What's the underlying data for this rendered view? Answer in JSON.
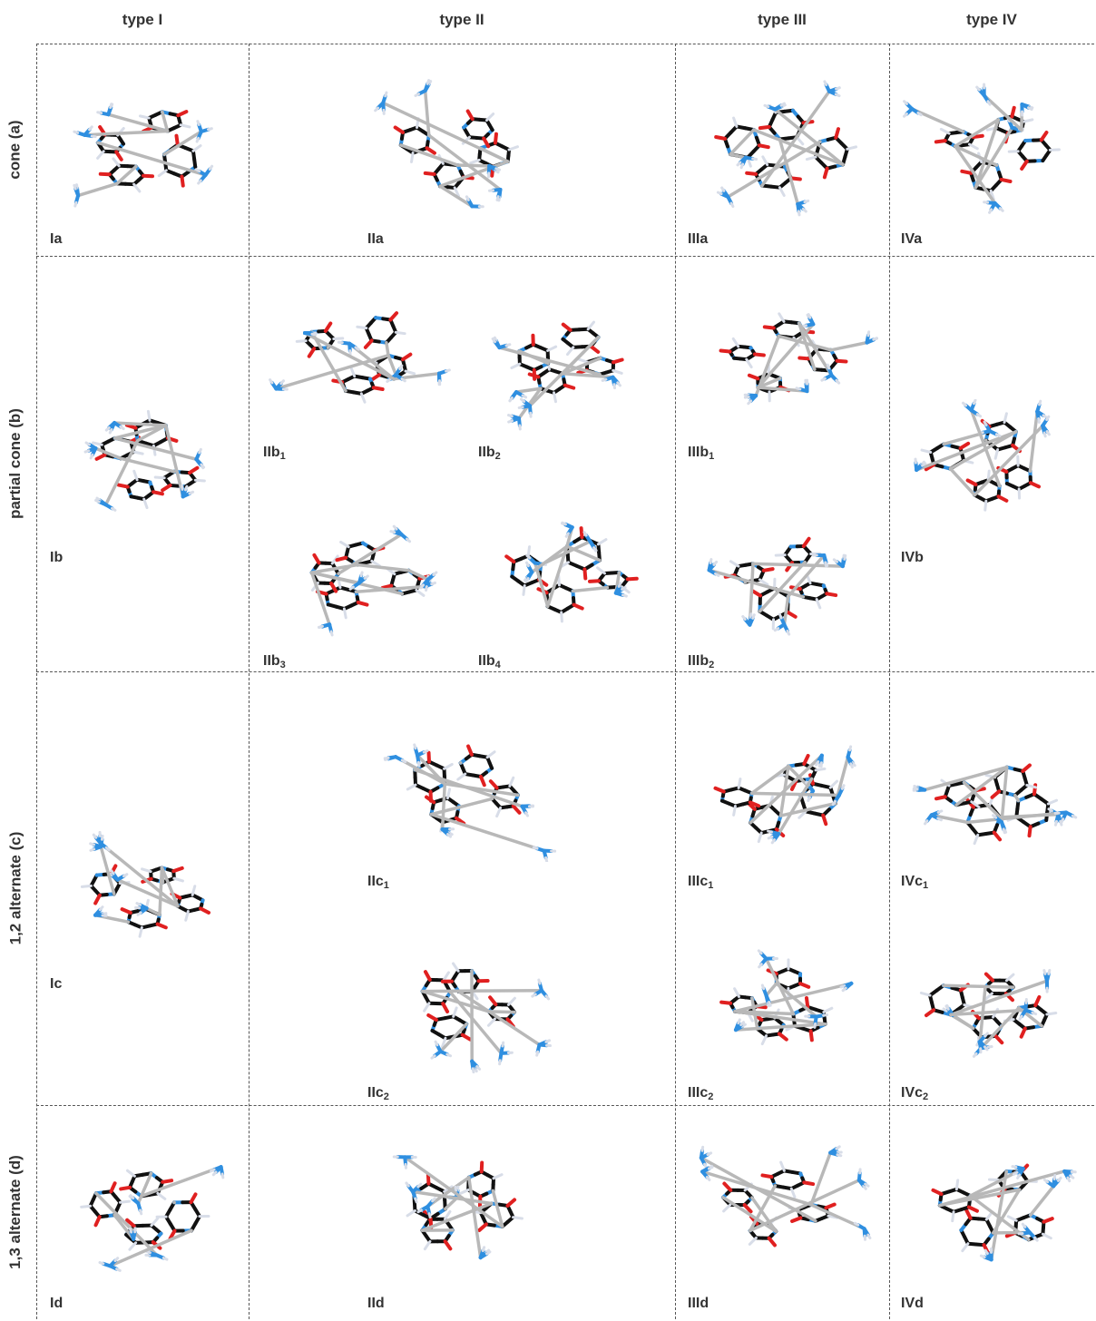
{
  "columns": [
    "type I",
    "type II",
    "type III",
    "type IV"
  ],
  "rows": [
    "cone (a)",
    "partial cone (b)",
    "1,2 alternate (c)",
    "1,3 alternate (d)"
  ],
  "labels": {
    "Ia": "Ia",
    "IIa": "IIa",
    "IIIa": "IIIa",
    "IVa": "IVa",
    "Ib": "Ib",
    "IIb1": {
      "main": "IIb",
      "sub": "1"
    },
    "IIb2": {
      "main": "IIb",
      "sub": "2"
    },
    "IIb3": {
      "main": "IIb",
      "sub": "3"
    },
    "IIb4": {
      "main": "IIb",
      "sub": "4"
    },
    "IIIb1": {
      "main": "IIIb",
      "sub": "1"
    },
    "IIIb2": {
      "main": "IIIb",
      "sub": "2"
    },
    "IVb": "IVb",
    "Ic": "Ic",
    "IIc1": {
      "main": "IIc",
      "sub": "1"
    },
    "IIc2": {
      "main": "IIc",
      "sub": "2"
    },
    "IIIc1": {
      "main": "IIIc",
      "sub": "1"
    },
    "IIIc2": {
      "main": "IIIc",
      "sub": "2"
    },
    "IVc1": {
      "main": "IVc",
      "sub": "1"
    },
    "IVc2": {
      "main": "IVc",
      "sub": "2"
    },
    "Id": "Id",
    "IId": "IId",
    "IIId": "IIId",
    "IVd": "IVd"
  },
  "colors": {
    "carbon_bond": "#111111",
    "nitrogen": "#2f8fe0",
    "oxygen": "#e02020",
    "hydrogen": "#d8dde8",
    "metal_bond": "#b8b8b8",
    "grid_line": "#555555"
  }
}
